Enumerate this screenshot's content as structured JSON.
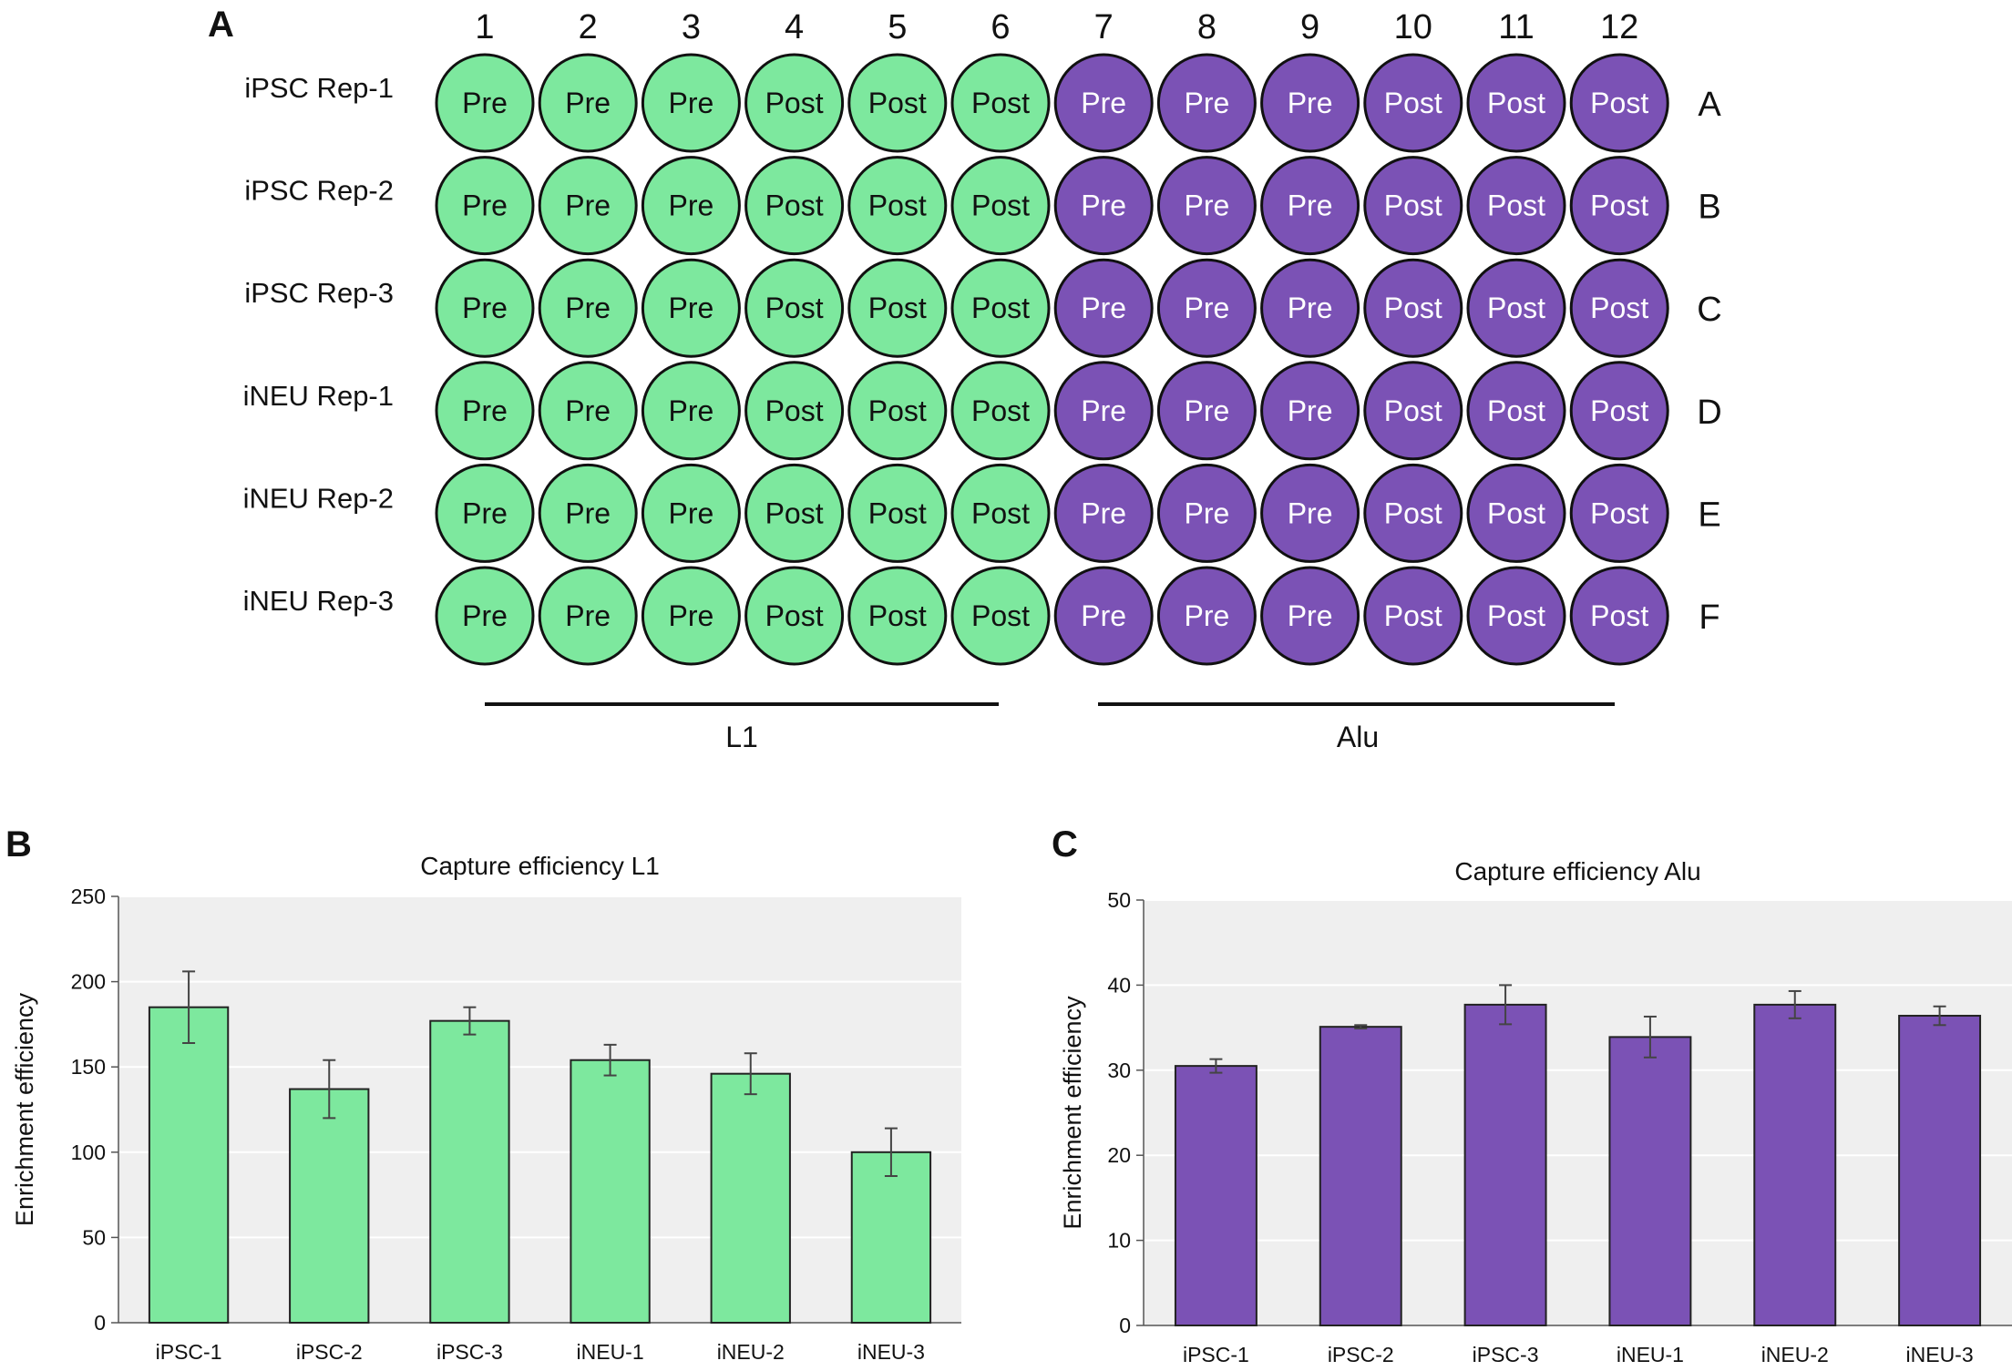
{
  "panel_a": {
    "label": "A",
    "columns": [
      "1",
      "2",
      "3",
      "4",
      "5",
      "6",
      "7",
      "8",
      "9",
      "10",
      "11",
      "12"
    ],
    "row_letters": [
      "A",
      "B",
      "C",
      "D",
      "E",
      "F"
    ],
    "row_names": [
      "iPSC Rep-1",
      "iPSC Rep-2",
      "iPSC Rep-3",
      "iNEU Rep-1",
      "iNEU Rep-2",
      "iNEU Rep-3"
    ],
    "well_labels": [
      "Pre",
      "Pre",
      "Pre",
      "Post",
      "Post",
      "Post",
      "Pre",
      "Pre",
      "Pre",
      "Post",
      "Post",
      "Post"
    ],
    "group_l1_label": "L1",
    "group_alu_label": "Alu",
    "colors": {
      "l1": "#7de89e",
      "alu": "#7b52b5",
      "outline": "#111111"
    }
  },
  "chart_data": [
    {
      "panel": "B",
      "type": "bar",
      "title": "Capture efficiency L1",
      "xlabel": "",
      "ylabel": "Enrichment efficiency",
      "categories": [
        "iPSC-1",
        "iPSC-2",
        "iPSC-3",
        "iNEU-1",
        "iNEU-2",
        "iNEU-3"
      ],
      "values": [
        185,
        137,
        177,
        154,
        146,
        100
      ],
      "errors": [
        21,
        17,
        8,
        9,
        12,
        14
      ],
      "ylim": [
        0,
        250
      ],
      "yticks": [
        0,
        50,
        100,
        150,
        200,
        250
      ],
      "grid": true,
      "color": "#7de89e"
    },
    {
      "panel": "C",
      "type": "bar",
      "title": "Capture efficiency Alu",
      "xlabel": "",
      "ylabel": "Enrichment efficiency",
      "categories": [
        "iPSC-1",
        "iPSC-2",
        "iPSC-3",
        "iNEU-1",
        "iNEU-2",
        "iNEU-3"
      ],
      "values": [
        30.5,
        35.1,
        37.7,
        33.9,
        37.7,
        36.4
      ],
      "errors": [
        0.8,
        0.2,
        2.3,
        2.4,
        1.6,
        1.1
      ],
      "ylim": [
        0,
        50
      ],
      "yticks": [
        0,
        10,
        20,
        30,
        40,
        50
      ],
      "grid": true,
      "color": "#7b52b5"
    }
  ]
}
